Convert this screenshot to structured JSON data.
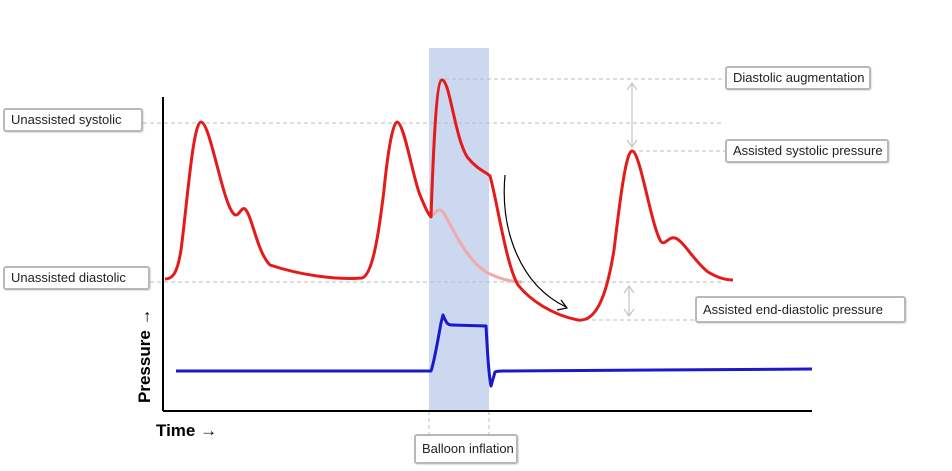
{
  "labels": {
    "unassisted_systolic": "Unassisted systolic",
    "unassisted_diastolic": "Unassisted diastolic",
    "diastolic_augmentation": "Diastolic augmentation",
    "assisted_systolic": "Assisted systolic pressure",
    "assisted_end_diastolic": "Assisted end-diastolic pressure",
    "balloon_inflation": "Balloon inflation"
  },
  "axes": {
    "y_title": "Pressure →",
    "x_title": "Time →"
  },
  "colors": {
    "arterial_curve": "#e31b1b",
    "unassisted_ghost": "#f2a9a9",
    "balloon_curve": "#1a1acc",
    "inflation_band": "#ccd8ef",
    "guide_line": "#bdbdbd",
    "axis": "#000000"
  }
}
